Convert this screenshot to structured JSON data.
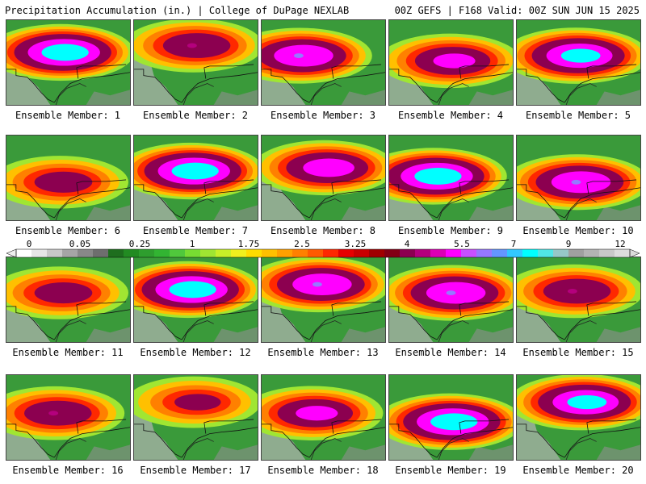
{
  "header": {
    "left": "Precipitation Accumulation (in.) | College of DuPage NEXLAB",
    "right": "00Z GEFS | F168 Valid: 00Z SUN JUN 15 2025"
  },
  "label_prefix": "Ensemble Member: ",
  "members": [
    {
      "id": "1",
      "peak": 7.5,
      "center": [
        0.43,
        0.38
      ]
    },
    {
      "id": "2",
      "peak": 5.0,
      "center": [
        0.47,
        0.3
      ]
    },
    {
      "id": "3",
      "peak": 6.5,
      "center": [
        0.3,
        0.42
      ]
    },
    {
      "id": "4",
      "peak": 5.5,
      "center": [
        0.48,
        0.48
      ]
    },
    {
      "id": "5",
      "peak": 7.0,
      "center": [
        0.47,
        0.42
      ]
    },
    {
      "id": "6",
      "peak": 4.5,
      "center": [
        0.42,
        0.55
      ]
    },
    {
      "id": "7",
      "peak": 7.5,
      "center": [
        0.45,
        0.42
      ]
    },
    {
      "id": "8",
      "peak": 6.0,
      "center": [
        0.5,
        0.38
      ]
    },
    {
      "id": "9",
      "peak": 7.5,
      "center": [
        0.35,
        0.48
      ]
    },
    {
      "id": "10",
      "peak": 6.5,
      "center": [
        0.48,
        0.55
      ]
    },
    {
      "id": "11",
      "peak": 4.5,
      "center": [
        0.42,
        0.42
      ]
    },
    {
      "id": "12",
      "peak": 7.5,
      "center": [
        0.43,
        0.38
      ]
    },
    {
      "id": "13",
      "peak": 6.5,
      "center": [
        0.45,
        0.32
      ]
    },
    {
      "id": "14",
      "peak": 6.5,
      "center": [
        0.5,
        0.42
      ]
    },
    {
      "id": "15",
      "peak": 5.0,
      "center": [
        0.45,
        0.4
      ]
    },
    {
      "id": "16",
      "peak": 5.0,
      "center": [
        0.38,
        0.45
      ]
    },
    {
      "id": "17",
      "peak": 4.0,
      "center": [
        0.47,
        0.32
      ]
    },
    {
      "id": "18",
      "peak": 5.5,
      "center": [
        0.4,
        0.45
      ]
    },
    {
      "id": "19",
      "peak": 7.5,
      "center": [
        0.48,
        0.55
      ]
    },
    {
      "id": "20",
      "peak": 7.0,
      "center": [
        0.52,
        0.32
      ]
    }
  ],
  "colorbar": {
    "tick_labels": [
      "0",
      "0.05",
      "0.25",
      "1",
      "1.75",
      "2.5",
      "3.25",
      "4",
      "5.5",
      "7",
      "9",
      "12"
    ],
    "colors": [
      "#ffffff",
      "#e6e6e6",
      "#c8c8c8",
      "#a5a5a5",
      "#888888",
      "#6e6e6e",
      "#1e6e1e",
      "#228b22",
      "#2e9e2e",
      "#32b432",
      "#50c83c",
      "#78dc32",
      "#a0e632",
      "#c8f028",
      "#f0f01e",
      "#ffdc00",
      "#ffc000",
      "#ffa000",
      "#ff8000",
      "#ff5a00",
      "#ff2800",
      "#e60000",
      "#c80000",
      "#a00000",
      "#820014",
      "#8c0050",
      "#b4007d",
      "#dc00b4",
      "#ff00ff",
      "#c850ff",
      "#9678ff",
      "#6496ff",
      "#32c8ff",
      "#00ffff",
      "#50e6e6",
      "#96c8c8",
      "#a0a0a0",
      "#b4b4b4",
      "#c8c8c8",
      "#dcdcdc"
    ]
  }
}
